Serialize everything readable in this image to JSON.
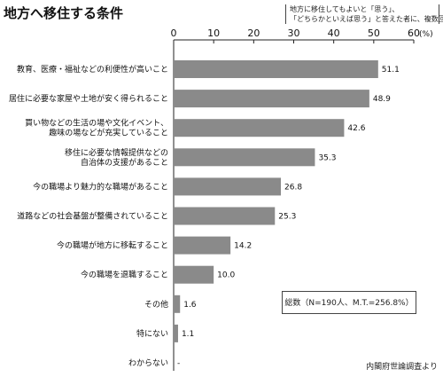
{
  "header": {
    "title": "地方へ移住する条件",
    "note_lines": [
      "地方に移住してもよいと「思う」、",
      "「どちらかといえば思う」と答えた者に、複数回答"
    ]
  },
  "summary": "総数（N=190人、M.T.=256.8%）",
  "source": "内閣府世論調査より",
  "chart_data": {
    "type": "bar",
    "orientation": "horizontal",
    "title": "地方へ移住する条件",
    "unit_label": "(%)",
    "xlim": [
      0,
      60
    ],
    "ticks": [
      0,
      10,
      20,
      30,
      40,
      50,
      60
    ],
    "bar_color": "#8a8a8a",
    "categories": [
      [
        "教育、医療・福祉などの利便性が高いこと"
      ],
      [
        "居住に必要な家屋や土地が安く得られること"
      ],
      [
        "買い物などの生活の場や文化イベント、",
        "趣味の場などが充実していること"
      ],
      [
        "移住に必要な情報提供などの",
        "自治体の支援があること"
      ],
      [
        "今の職場より魅力的な職場があること"
      ],
      [
        "道路などの社会基盤が整備されていること"
      ],
      [
        "今の職場が地方に移転すること"
      ],
      [
        "今の職場を退職すること"
      ],
      [
        "その他"
      ],
      [
        "特にない"
      ],
      [
        "わからない"
      ]
    ],
    "values": [
      51.1,
      48.9,
      42.6,
      35.3,
      26.8,
      25.3,
      14.2,
      10.0,
      1.6,
      1.1,
      null
    ],
    "value_labels": [
      "51.1",
      "48.9",
      "42.6",
      "35.3",
      "26.8",
      "25.3",
      "14.2",
      "10.0",
      "1.6",
      "1.1",
      "-"
    ]
  }
}
